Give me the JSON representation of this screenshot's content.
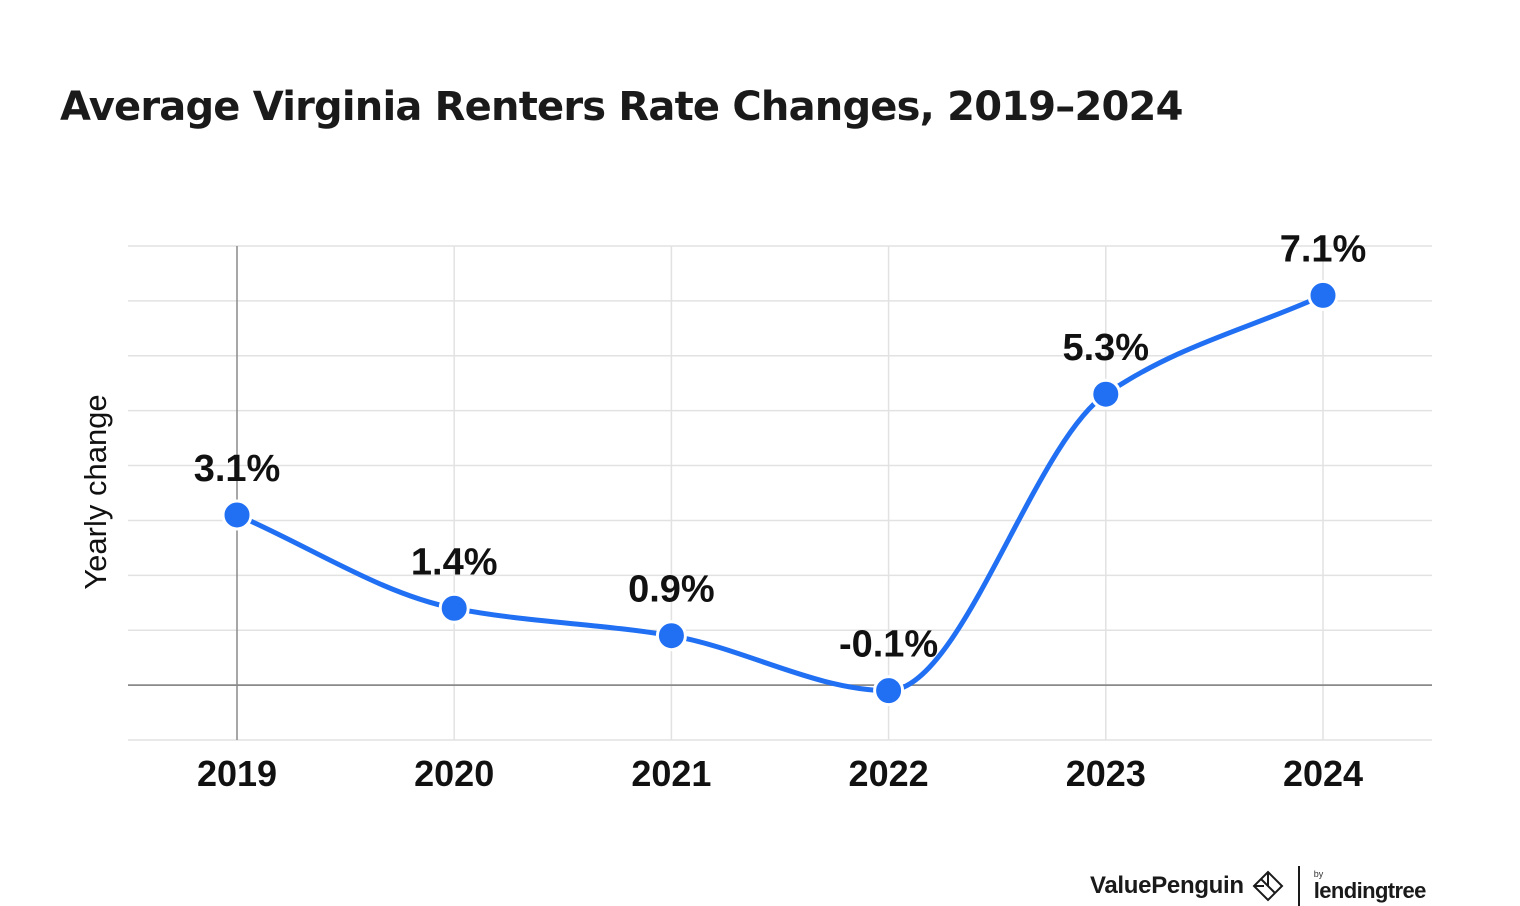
{
  "title": "Average Virginia Renters Rate Changes, 2019–2024",
  "chart_data": {
    "type": "line",
    "title": "Average Virginia Renters Rate Changes, 2019–2024",
    "xlabel": "",
    "ylabel": "Yearly change",
    "categories": [
      "2019",
      "2020",
      "2021",
      "2022",
      "2023",
      "2024"
    ],
    "values": [
      3.1,
      1.4,
      0.9,
      -0.1,
      5.3,
      7.1
    ],
    "data_labels": [
      "3.1%",
      "1.4%",
      "0.9%",
      "-0.1%",
      "5.3%",
      "7.1%"
    ],
    "ylim": [
      -1.0,
      8.0
    ],
    "grid": true,
    "line_color": "#2170f4"
  },
  "footer": {
    "brand": "ValuePenguin",
    "brand_icon": "valuepenguin-logo-icon",
    "by": "by",
    "partner": "lendingtree"
  }
}
